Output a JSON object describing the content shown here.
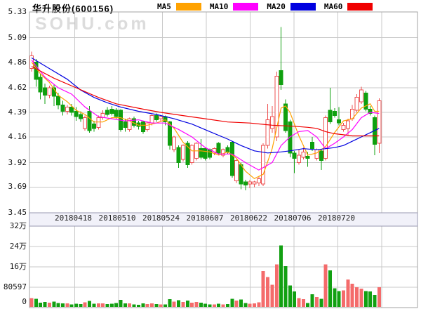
{
  "header": {
    "title": "华升股份(600156)",
    "legend": [
      {
        "label": "MA5",
        "color": "#FFA200"
      },
      {
        "label": "MA10",
        "color": "#FF00FF"
      },
      {
        "label": "MA20",
        "color": "#0000E0"
      },
      {
        "label": "MA60",
        "color": "#F00000"
      }
    ]
  },
  "watermark": "SOHU.com",
  "colors": {
    "up": "#EE5151",
    "down": "#0FA00F",
    "vol_up": "#F46B6B",
    "vol_down": "#12A012",
    "grid": "#C9C9C9",
    "border": "#A3A3A3",
    "strip_bg": "#F1F1F9",
    "strip_border": "#9898B0",
    "background": "#FFFFFF",
    "watermark": "#DCDCDC"
  },
  "chart_data": {
    "type": "candlestick",
    "title": "华升股份(600156)",
    "price_axis": {
      "min": 3.45,
      "max": 5.33,
      "ticks": [
        "5.33",
        "5.09",
        "4.86",
        "4.62",
        "4.39",
        "4.16",
        "3.92",
        "3.69",
        "3.45"
      ]
    },
    "volume_axis": {
      "max": 320000,
      "ticks": [
        {
          "label": "32万",
          "value": 320000
        },
        {
          "label": "24万",
          "value": 240000
        },
        {
          "label": "16万",
          "value": 160000
        },
        {
          "label": "80597",
          "value": 80597
        },
        {
          "label": "0",
          "value": 0
        }
      ]
    },
    "x_labels": [
      "20180418",
      "20180510",
      "20180524",
      "20180607",
      "20180622",
      "20180706",
      "20180720"
    ],
    "candles_format": [
      "open",
      "high",
      "low",
      "close",
      "volume"
    ],
    "candles": [
      [
        4.8,
        4.96,
        4.77,
        4.92,
        37000
      ],
      [
        4.86,
        4.89,
        4.63,
        4.7,
        34000
      ],
      [
        4.72,
        4.75,
        4.51,
        4.58,
        20000
      ],
      [
        4.62,
        4.66,
        4.47,
        4.55,
        22000
      ],
      [
        4.55,
        4.64,
        4.52,
        4.62,
        20000
      ],
      [
        4.62,
        4.65,
        4.45,
        4.54,
        24000
      ],
      [
        4.54,
        4.57,
        4.42,
        4.46,
        18000
      ],
      [
        4.46,
        4.5,
        4.36,
        4.4,
        16000
      ],
      [
        4.4,
        4.46,
        4.37,
        4.44,
        17000
      ],
      [
        4.44,
        4.47,
        4.36,
        4.39,
        13000
      ],
      [
        4.4,
        4.44,
        4.31,
        4.35,
        15000
      ],
      [
        4.37,
        4.4,
        4.3,
        4.33,
        14000
      ],
      [
        4.24,
        4.36,
        4.22,
        4.34,
        21000
      ],
      [
        4.4,
        4.45,
        4.2,
        4.22,
        26000
      ],
      [
        4.28,
        4.31,
        4.21,
        4.24,
        15000
      ],
      [
        4.25,
        4.36,
        4.23,
        4.34,
        17000
      ],
      [
        4.34,
        4.41,
        4.32,
        4.38,
        16000
      ],
      [
        4.41,
        4.44,
        4.35,
        4.37,
        14000
      ],
      [
        4.42,
        4.45,
        4.36,
        4.38,
        15000
      ],
      [
        4.41,
        4.43,
        4.33,
        4.35,
        18000
      ],
      [
        4.41,
        4.42,
        4.21,
        4.23,
        30000
      ],
      [
        4.3,
        4.33,
        4.21,
        4.25,
        16000
      ],
      [
        4.23,
        4.34,
        4.21,
        4.33,
        17000
      ],
      [
        4.33,
        4.35,
        4.25,
        4.27,
        13000
      ],
      [
        4.29,
        4.31,
        4.23,
        4.26,
        11000
      ],
      [
        4.3,
        4.31,
        4.19,
        4.21,
        16000
      ],
      [
        4.23,
        4.3,
        4.21,
        4.29,
        14000
      ],
      [
        4.29,
        4.37,
        4.27,
        4.36,
        17000
      ],
      [
        4.36,
        4.38,
        4.3,
        4.32,
        14000
      ],
      [
        4.33,
        4.36,
        4.3,
        4.35,
        12000
      ],
      [
        4.35,
        4.36,
        4.27,
        4.3,
        13000
      ],
      [
        4.3,
        4.31,
        4.04,
        4.08,
        33000
      ],
      [
        4.04,
        4.17,
        4.02,
        4.16,
        24000
      ],
      [
        4.06,
        4.08,
        3.87,
        3.92,
        29000
      ],
      [
        3.95,
        4.09,
        3.93,
        4.08,
        22000
      ],
      [
        4.1,
        4.12,
        3.87,
        3.9,
        27000
      ],
      [
        3.92,
        4.09,
        3.9,
        4.08,
        20000
      ],
      [
        3.96,
        4.11,
        3.94,
        4.1,
        22000
      ],
      [
        4.05,
        4.14,
        3.95,
        3.97,
        19000
      ],
      [
        4.05,
        4.06,
        3.94,
        3.96,
        15000
      ],
      [
        4.04,
        4.05,
        3.95,
        3.97,
        13000
      ],
      [
        4.01,
        4.06,
        3.99,
        4.05,
        12000
      ],
      [
        4.1,
        4.11,
        3.99,
        4.01,
        15000
      ],
      [
        3.99,
        4.05,
        3.97,
        4.04,
        13000
      ],
      [
        4.06,
        4.08,
        4.0,
        4.02,
        14000
      ],
      [
        4.11,
        4.12,
        3.78,
        3.8,
        35000
      ],
      [
        3.75,
        3.95,
        3.73,
        3.94,
        28000
      ],
      [
        3.9,
        3.92,
        3.67,
        3.72,
        32000
      ],
      [
        3.74,
        3.76,
        3.66,
        3.71,
        18000
      ],
      [
        3.72,
        3.76,
        3.68,
        3.74,
        15000
      ],
      [
        3.72,
        3.75,
        3.69,
        3.74,
        16000
      ],
      [
        3.73,
        3.79,
        3.7,
        3.77,
        21000
      ],
      [
        3.72,
        4.1,
        3.7,
        4.08,
        144000
      ],
      [
        4.08,
        4.47,
        4.05,
        4.32,
        120000
      ],
      [
        4.24,
        4.45,
        4.2,
        4.35,
        90000
      ],
      [
        4.16,
        4.77,
        4.12,
        4.73,
        170000
      ],
      [
        4.78,
        5.19,
        4.6,
        4.65,
        244000
      ],
      [
        4.47,
        4.51,
        4.2,
        4.22,
        163000
      ],
      [
        4.3,
        4.32,
        3.97,
        4.01,
        87000
      ],
      [
        4.01,
        4.03,
        3.82,
        3.96,
        63000
      ],
      [
        3.92,
        4.04,
        3.9,
        3.99,
        37000
      ],
      [
        3.97,
        4.06,
        3.95,
        4.02,
        33000
      ],
      [
        3.98,
        4.02,
        3.88,
        3.96,
        18000
      ],
      [
        4.11,
        4.16,
        4.03,
        4.05,
        52000
      ],
      [
        3.96,
        4.05,
        3.94,
        4.04,
        42000
      ],
      [
        4.03,
        4.04,
        3.85,
        3.94,
        35000
      ],
      [
        3.96,
        4.36,
        3.94,
        4.34,
        170000
      ],
      [
        4.41,
        4.62,
        4.28,
        4.3,
        146000
      ],
      [
        4.4,
        4.43,
        4.34,
        4.36,
        76000
      ],
      [
        4.32,
        4.44,
        4.27,
        4.29,
        65000
      ],
      [
        4.23,
        4.29,
        4.21,
        4.27,
        68000
      ],
      [
        4.24,
        4.33,
        4.17,
        4.31,
        110000
      ],
      [
        4.33,
        4.46,
        4.31,
        4.42,
        94000
      ],
      [
        4.41,
        4.56,
        4.39,
        4.53,
        80000
      ],
      [
        4.49,
        4.63,
        4.47,
        4.6,
        75000
      ],
      [
        4.57,
        4.59,
        4.4,
        4.42,
        65000
      ],
      [
        4.42,
        4.45,
        4.36,
        4.38,
        63000
      ],
      [
        4.34,
        4.36,
        3.99,
        4.09,
        50000
      ],
      [
        4.1,
        4.52,
        4.01,
        4.5,
        80597
      ]
    ],
    "ma_series": [
      {
        "name": "MA5",
        "color": "#FFA200",
        "points": [
          [
            0,
            4.86
          ],
          [
            2,
            4.75
          ],
          [
            4,
            4.67
          ],
          [
            6,
            4.55
          ],
          [
            8,
            4.49
          ],
          [
            10,
            4.41
          ],
          [
            12,
            4.37
          ],
          [
            14,
            4.3
          ],
          [
            16,
            4.3
          ],
          [
            18,
            4.34
          ],
          [
            20,
            4.34
          ],
          [
            22,
            4.31
          ],
          [
            24,
            4.27
          ],
          [
            26,
            4.27
          ],
          [
            28,
            4.29
          ],
          [
            30,
            4.32
          ],
          [
            32,
            4.24
          ],
          [
            34,
            4.11
          ],
          [
            36,
            4.03
          ],
          [
            38,
            4.03
          ],
          [
            40,
            4.02
          ],
          [
            42,
            3.99
          ],
          [
            44,
            4.02
          ],
          [
            46,
            3.96
          ],
          [
            48,
            3.84
          ],
          [
            50,
            3.77
          ],
          [
            52,
            3.81
          ],
          [
            54,
            4.05
          ],
          [
            56,
            4.43
          ],
          [
            57,
            4.45
          ],
          [
            58,
            4.39
          ],
          [
            60,
            4.17
          ],
          [
            62,
            3.99
          ],
          [
            64,
            4.01
          ],
          [
            66,
            4.07
          ],
          [
            68,
            4.2
          ],
          [
            70,
            4.31
          ],
          [
            72,
            4.33
          ],
          [
            74,
            4.43
          ],
          [
            76,
            4.47
          ],
          [
            77,
            4.4
          ],
          [
            78,
            4.4
          ]
        ]
      },
      {
        "name": "MA10",
        "color": "#FF00FF",
        "points": [
          [
            0,
            4.88
          ],
          [
            3,
            4.72
          ],
          [
            6,
            4.62
          ],
          [
            9,
            4.56
          ],
          [
            12,
            4.44
          ],
          [
            15,
            4.35
          ],
          [
            18,
            4.33
          ],
          [
            21,
            4.31
          ],
          [
            24,
            4.32
          ],
          [
            27,
            4.29
          ],
          [
            30,
            4.29
          ],
          [
            33,
            4.23
          ],
          [
            36,
            4.16
          ],
          [
            39,
            4.06
          ],
          [
            42,
            4.0
          ],
          [
            45,
            4.0
          ],
          [
            48,
            3.92
          ],
          [
            51,
            3.85
          ],
          [
            54,
            3.92
          ],
          [
            56,
            4.08
          ],
          [
            58,
            4.16
          ],
          [
            60,
            4.21
          ],
          [
            62,
            4.22
          ],
          [
            64,
            4.16
          ],
          [
            66,
            4.05
          ],
          [
            68,
            4.1
          ],
          [
            70,
            4.16
          ],
          [
            72,
            4.23
          ],
          [
            74,
            4.34
          ],
          [
            76,
            4.39
          ],
          [
            78,
            4.38
          ]
        ]
      },
      {
        "name": "MA20",
        "color": "#0000E0",
        "points": [
          [
            0,
            4.9
          ],
          [
            4,
            4.8
          ],
          [
            8,
            4.7
          ],
          [
            11,
            4.6
          ],
          [
            14,
            4.53
          ],
          [
            17,
            4.48
          ],
          [
            20,
            4.44
          ],
          [
            24,
            4.4
          ],
          [
            28,
            4.37
          ],
          [
            32,
            4.33
          ],
          [
            36,
            4.28
          ],
          [
            40,
            4.21
          ],
          [
            44,
            4.14
          ],
          [
            47,
            4.08
          ],
          [
            50,
            4.03
          ],
          [
            53,
            4.01
          ],
          [
            56,
            4.02
          ],
          [
            58,
            4.03
          ],
          [
            61,
            4.05
          ],
          [
            64,
            4.04
          ],
          [
            66,
            4.05
          ],
          [
            68,
            4.06
          ],
          [
            70,
            4.08
          ],
          [
            72,
            4.12
          ],
          [
            74,
            4.16
          ],
          [
            76,
            4.2
          ],
          [
            78,
            4.24
          ]
        ]
      },
      {
        "name": "MA60",
        "color": "#F00000",
        "points": [
          [
            0,
            4.82
          ],
          [
            5,
            4.71
          ],
          [
            10,
            4.62
          ],
          [
            15,
            4.53
          ],
          [
            19,
            4.47
          ],
          [
            25,
            4.42
          ],
          [
            29,
            4.39
          ],
          [
            34,
            4.36
          ],
          [
            39,
            4.33
          ],
          [
            44,
            4.3
          ],
          [
            49,
            4.29
          ],
          [
            54,
            4.27
          ],
          [
            59,
            4.26
          ],
          [
            62,
            4.25
          ],
          [
            64,
            4.24
          ],
          [
            66,
            4.21
          ],
          [
            68,
            4.19
          ],
          [
            70,
            4.18
          ],
          [
            72,
            4.17
          ],
          [
            78,
            4.17
          ]
        ]
      }
    ]
  }
}
